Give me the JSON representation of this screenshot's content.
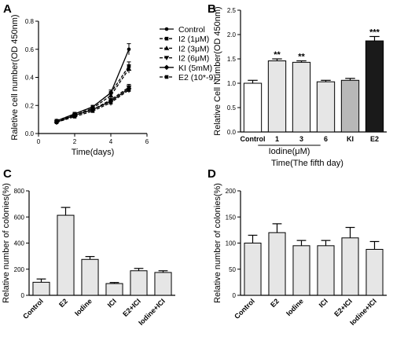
{
  "panels": {
    "A": "A",
    "B": "B",
    "C": "C",
    "D": "D"
  },
  "chart_data": [
    {
      "panel": "A",
      "type": "line",
      "xlabel": "Time(days)",
      "ylabel": "Raletive cell number(OD 450nm)",
      "xlim": [
        0,
        6
      ],
      "ylim": [
        0,
        0.8
      ],
      "xticks": [
        0,
        2,
        4,
        6
      ],
      "yticks": [
        0.0,
        0.2,
        0.4,
        0.6,
        0.8
      ],
      "x": [
        1,
        2,
        3,
        4,
        5
      ],
      "series": [
        {
          "name": "Control",
          "marker": "circle",
          "dash": "solid",
          "values": [
            0.09,
            0.14,
            0.19,
            0.29,
            0.6
          ],
          "errors": [
            0.01,
            0.01,
            0.01,
            0.02,
            0.04
          ]
        },
        {
          "name": "I2 (1μM)",
          "marker": "square",
          "dash": "dashed",
          "values": [
            0.09,
            0.14,
            0.19,
            0.29,
            0.48
          ],
          "errors": [
            0.01,
            0.01,
            0.01,
            0.02,
            0.03
          ]
        },
        {
          "name": "I2 (3μM)",
          "marker": "triangle-up",
          "dash": "dashed",
          "values": [
            0.09,
            0.13,
            0.18,
            0.27,
            0.46
          ],
          "errors": [
            0.01,
            0.01,
            0.01,
            0.02,
            0.03
          ]
        },
        {
          "name": "I2 (6μM)",
          "marker": "triangle-down",
          "dash": "dashed",
          "values": [
            0.08,
            0.13,
            0.17,
            0.24,
            0.33
          ],
          "errors": [
            0.01,
            0.01,
            0.01,
            0.02,
            0.02
          ]
        },
        {
          "name": "KI (5mM)",
          "marker": "diamond",
          "dash": "solid",
          "values": [
            0.08,
            0.13,
            0.17,
            0.23,
            0.32
          ],
          "errors": [
            0.01,
            0.01,
            0.01,
            0.03,
            0.02
          ]
        },
        {
          "name": "E2 (10*-9)",
          "marker": "square",
          "dash": "dashed",
          "values": [
            0.08,
            0.12,
            0.16,
            0.22,
            0.31
          ],
          "errors": [
            0.01,
            0.01,
            0.01,
            0.02,
            0.02
          ]
        }
      ]
    },
    {
      "panel": "B",
      "type": "bar",
      "ylabel": "Relative Cell Number(OD 450nm)",
      "xlabel": "Time(The fifth day)",
      "group_label": "Iodine(μM)",
      "ylim": [
        0,
        2.5
      ],
      "yticks": [
        0.0,
        0.5,
        1.0,
        1.5,
        2.0,
        2.5
      ],
      "categories": [
        "Control",
        "1",
        "3",
        "6",
        "KI",
        "E2"
      ],
      "values": [
        1.0,
        1.46,
        1.43,
        1.03,
        1.06,
        1.87
      ],
      "errors": [
        0.06,
        0.04,
        0.03,
        0.03,
        0.04,
        0.09
      ],
      "significance": [
        "",
        "**",
        "**",
        "",
        "",
        "***"
      ],
      "colors": [
        "#ffffff",
        "#e6e6e6",
        "#e6e6e6",
        "#e6e6e6",
        "#b8b8b8",
        "#1a1a1a"
      ]
    },
    {
      "panel": "C",
      "type": "bar",
      "ylabel": "Relative number of colonies(%)",
      "ylim": [
        0,
        800
      ],
      "yticks": [
        0,
        200,
        400,
        600,
        800
      ],
      "categories": [
        "Control",
        "E2",
        "Iodine",
        "ICI",
        "E2+ICI",
        "Iodine+ICI"
      ],
      "values": [
        100,
        613,
        275,
        90,
        188,
        175
      ],
      "errors": [
        25,
        60,
        22,
        8,
        18,
        13
      ],
      "bar_color": "#e6e6e6"
    },
    {
      "panel": "D",
      "type": "bar",
      "ylabel": "Relative number of colonies(%)",
      "ylim": [
        0,
        200
      ],
      "yticks": [
        0,
        50,
        100,
        150,
        200
      ],
      "categories": [
        "Control",
        "E2",
        "Iodine",
        "ICI",
        "E2+ICI",
        "Iodine+ICI"
      ],
      "values": [
        100,
        120,
        95,
        95,
        110,
        88
      ],
      "errors": [
        15,
        17,
        10,
        10,
        20,
        15
      ],
      "bar_color": "#e6e6e6"
    }
  ]
}
